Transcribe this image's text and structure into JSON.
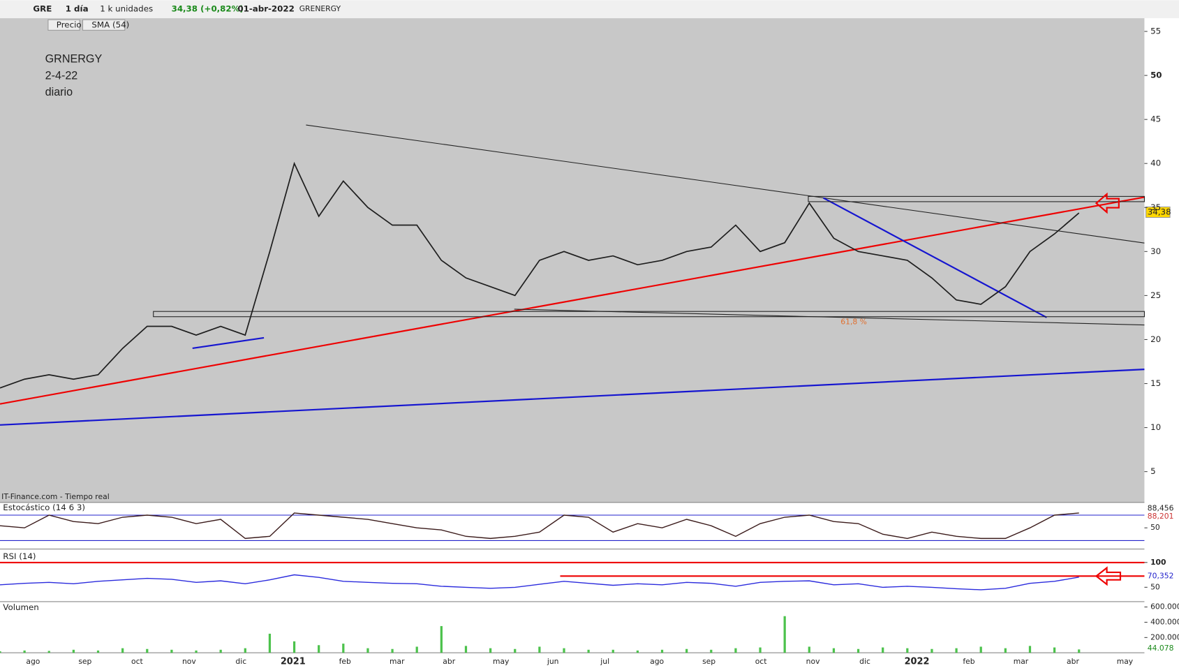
{
  "toolbar": {
    "symbol": "GRE",
    "period": "1 día",
    "units": "1 k unidades",
    "change": "34,38 (+0,82%)",
    "date": "01-abr-2022",
    "name": "GRENERGY",
    "price_toggle": "Precio",
    "sma_toggle": "SMA (54)"
  },
  "chart_data": [
    {
      "type": "line",
      "annotations": [
        "GRNERGY",
        "2-4-22",
        "diario"
      ],
      "fib_label": "61,8 %",
      "source": "IT-Finance.com - Tiempo real",
      "last_label": "34,38",
      "months": [
        "ago",
        "sep",
        "oct",
        "nov",
        "dic",
        "2021",
        "feb",
        "mar",
        "abr",
        "may",
        "jun",
        "jul",
        "ago",
        "sep",
        "oct",
        "nov",
        "dic",
        "2022",
        "feb",
        "mar",
        "abr",
        "may"
      ],
      "series": [
        {
          "name": "Precio",
          "color": "#1e1e1e",
          "values": [
            14.5,
            15.5,
            16,
            15.5,
            16,
            19,
            21.5,
            21.5,
            20.5,
            21.5,
            20.5,
            30,
            40,
            34,
            38,
            35,
            33,
            33,
            29,
            27,
            26,
            25,
            29,
            30,
            29,
            29.5,
            28.5,
            29,
            30,
            30.5,
            33,
            30,
            31,
            35.5,
            31.5,
            30,
            29.5,
            29,
            27,
            24.5,
            24,
            26,
            30,
            32,
            34.38
          ]
        }
      ],
      "ylim": [
        1.5,
        56.5
      ],
      "yticks": [
        5,
        10,
        15,
        20,
        25,
        30,
        35,
        40,
        45,
        50,
        55
      ]
    },
    {
      "type": "line",
      "title": "Estocástico (14 6 3)",
      "k_label": "88,456",
      "d_label": "88,201",
      "series": [
        {
          "name": "Estocástico",
          "color": "#3a1a1a",
          "values": [
            55,
            50,
            80,
            65,
            60,
            75,
            80,
            75,
            60,
            70,
            25,
            30,
            85,
            80,
            75,
            70,
            60,
            50,
            45,
            30,
            25,
            30,
            40,
            80,
            75,
            40,
            60,
            50,
            70,
            55,
            30,
            60,
            75,
            80,
            65,
            60,
            35,
            25,
            40,
            30,
            25,
            25,
            50,
            80,
            85
          ]
        }
      ],
      "ylim": [
        0,
        110
      ],
      "yticks": [
        50
      ],
      "levels": [
        20,
        80
      ]
    },
    {
      "type": "line",
      "title": "RSI (14)",
      "last_label": "70,352",
      "series": [
        {
          "name": "RSI",
          "color": "#2b2bdd",
          "values": [
            55,
            58,
            60,
            57,
            62,
            65,
            68,
            66,
            60,
            63,
            57,
            65,
            75,
            70,
            62,
            60,
            58,
            57,
            52,
            50,
            48,
            50,
            56,
            62,
            58,
            54,
            57,
            55,
            60,
            58,
            52,
            60,
            62,
            63,
            55,
            57,
            50,
            52,
            50,
            47,
            45,
            48,
            58,
            62,
            70.352
          ]
        }
      ],
      "ylim": [
        21,
        124
      ],
      "yticks": [
        50,
        100
      ]
    },
    {
      "type": "bar",
      "title": "Volumen",
      "last_label": "44.078",
      "color": "#4cc24c",
      "values": [
        20000,
        30000,
        25000,
        40000,
        30000,
        60000,
        50000,
        40000,
        30000,
        40000,
        60000,
        250000,
        150000,
        100000,
        120000,
        60000,
        50000,
        80000,
        350000,
        90000,
        60000,
        50000,
        80000,
        60000,
        40000,
        40000,
        30000,
        40000,
        50000,
        40000,
        60000,
        70000,
        480000,
        80000,
        60000,
        50000,
        70000,
        60000,
        50000,
        60000,
        80000,
        60000,
        90000,
        70000,
        44078
      ],
      "ylim": [
        0,
        650000
      ],
      "yticks": [
        {
          "value": 200000,
          "label": "200.000"
        },
        {
          "value": 400000,
          "label": "400.000"
        },
        {
          "value": 600000,
          "label": "600.000"
        }
      ]
    }
  ]
}
